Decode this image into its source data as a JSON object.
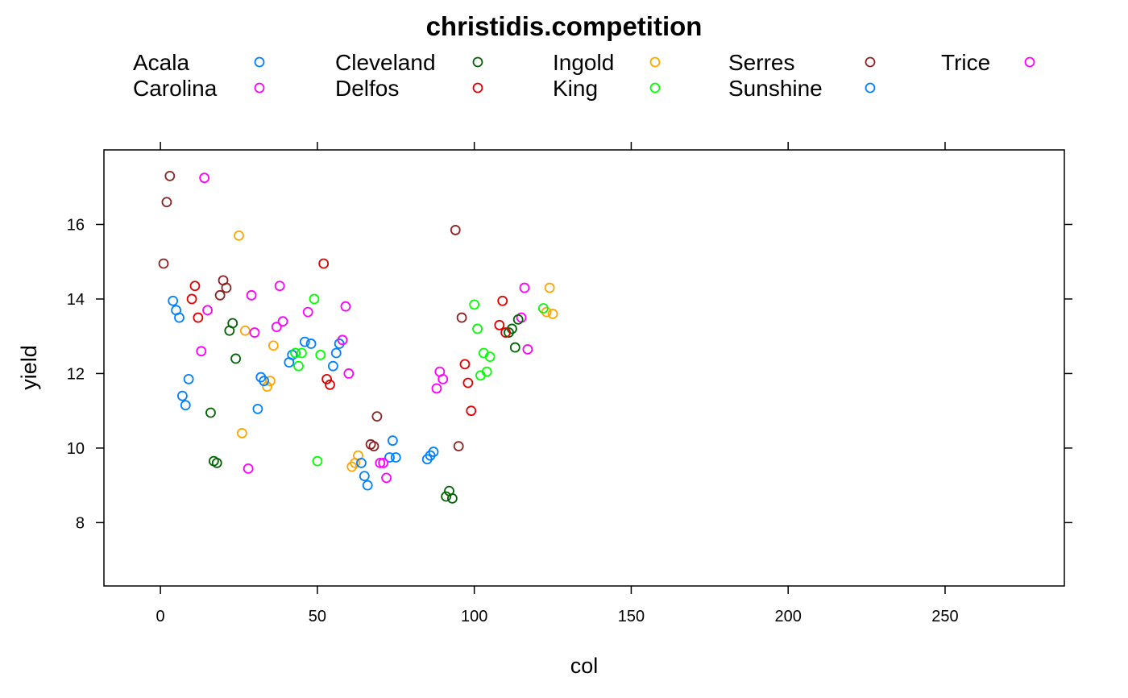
{
  "chart_data": {
    "type": "scatter",
    "title": "christidis.competition",
    "xlabel": "col",
    "ylabel": "yield",
    "xlim": [
      -18,
      288
    ],
    "ylim": [
      6.3,
      18.0
    ],
    "x_ticks": [
      "0",
      "50",
      "100",
      "150",
      "200",
      "250"
    ],
    "y_ticks": [
      "8",
      "10",
      "12",
      "14",
      "16"
    ],
    "grid": false,
    "legend_position": "top",
    "colors": {
      "Acala": "#0080ff",
      "Carolina": "#ff00ff",
      "Cleveland": "#006400",
      "Delfos": "#e00000",
      "Ingold": "#ffa500",
      "King": "#00ff00",
      "Serres": "#8b2323",
      "Sunshine": "#0080ff",
      "Trice": "#ff00ff"
    },
    "series": [
      {
        "name": "Acala",
        "x": [
          4,
          5,
          6,
          7,
          8,
          9,
          41,
          42,
          43,
          46,
          48
        ],
        "y": [
          13.95,
          13.7,
          13.5,
          11.4,
          11.15,
          11.85,
          12.3,
          12.5,
          12.55,
          12.85,
          12.8
        ]
      },
      {
        "name": "Carolina",
        "x": [
          13,
          14,
          15,
          37,
          38,
          39,
          88,
          89,
          90,
          115,
          116,
          117
        ],
        "y": [
          12.6,
          17.25,
          13.7,
          13.25,
          14.35,
          13.4,
          11.6,
          12.05,
          11.85,
          13.5,
          14.3,
          12.65
        ]
      },
      {
        "name": "Cleveland",
        "x": [
          16,
          17,
          18,
          22,
          23,
          24,
          91,
          92,
          93,
          111,
          112,
          113,
          114
        ],
        "y": [
          10.95,
          9.65,
          9.6,
          13.15,
          13.35,
          12.4,
          8.7,
          8.85,
          8.65,
          13.1,
          13.2,
          12.7,
          13.45
        ]
      },
      {
        "name": "Delfos",
        "x": [
          10,
          11,
          12,
          52,
          53,
          54,
          97,
          98,
          99,
          108,
          109,
          110
        ],
        "y": [
          14.0,
          14.35,
          13.5,
          14.95,
          11.85,
          11.7,
          12.25,
          11.75,
          11.0,
          13.3,
          13.95,
          13.1
        ]
      },
      {
        "name": "Ingold",
        "x": [
          25,
          26,
          27,
          34,
          35,
          36,
          61,
          62,
          63,
          123,
          124,
          125
        ],
        "y": [
          15.7,
          10.4,
          13.15,
          11.65,
          11.8,
          12.75,
          9.5,
          9.6,
          9.8,
          13.65,
          14.3,
          13.6
        ]
      },
      {
        "name": "King",
        "x": [
          43,
          44,
          45,
          49,
          50,
          51,
          100,
          101,
          102,
          103,
          104,
          105,
          122
        ],
        "y": [
          12.55,
          12.2,
          12.55,
          14.0,
          9.65,
          12.5,
          13.85,
          13.2,
          11.95,
          12.55,
          12.05,
          12.45,
          13.75
        ]
      },
      {
        "name": "Serres",
        "x": [
          1,
          2,
          3,
          19,
          20,
          21,
          67,
          68,
          69,
          94,
          95,
          96
        ],
        "y": [
          14.95,
          16.6,
          17.3,
          14.1,
          14.5,
          14.3,
          10.1,
          10.05,
          10.85,
          15.85,
          10.05,
          13.5
        ]
      },
      {
        "name": "Sunshine",
        "x": [
          31,
          32,
          33,
          55,
          56,
          57,
          64,
          65,
          66,
          73,
          74,
          75,
          85,
          86,
          87
        ],
        "y": [
          11.05,
          11.9,
          11.8,
          12.2,
          12.55,
          12.8,
          9.6,
          9.25,
          9.0,
          9.75,
          10.2,
          9.75,
          9.7,
          9.8,
          9.9
        ]
      },
      {
        "name": "Trice",
        "x": [
          28,
          29,
          30,
          47,
          58,
          59,
          60,
          70,
          71,
          72
        ],
        "y": [
          9.45,
          14.1,
          13.1,
          13.65,
          12.9,
          13.8,
          12.0,
          9.6,
          9.6,
          9.2
        ]
      }
    ]
  }
}
